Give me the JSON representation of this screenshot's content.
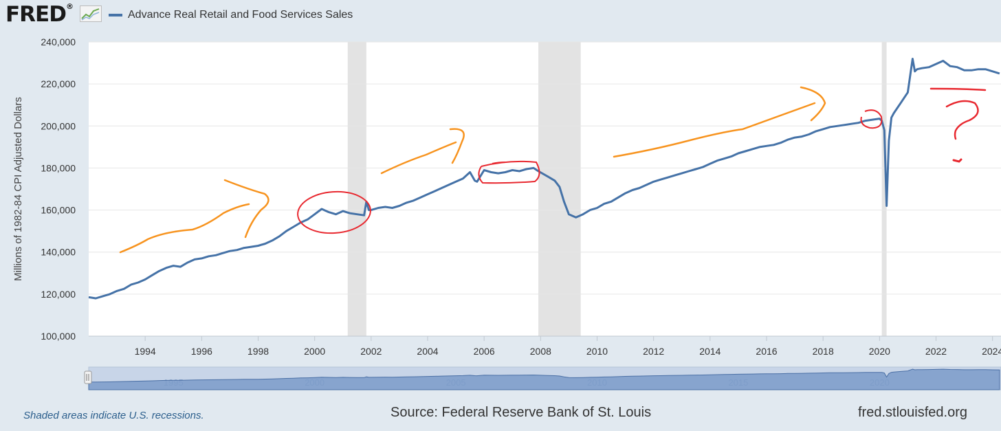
{
  "header": {
    "logo_text": "FRED",
    "logo_mark": "®",
    "series_title": "Advance Real Retail and Food Services Sales"
  },
  "colors": {
    "series": "#4572a7",
    "recession": "#e3e3e3",
    "annotation_orange": "#f7931e",
    "annotation_red": "#e8282f"
  },
  "chart_data": {
    "type": "line",
    "title": "Advance Real Retail and Food Services Sales",
    "ylabel": "Millions of 1982-84 CPI Adjusted Dollars",
    "xlabel": "",
    "ylim": [
      100000,
      240000
    ],
    "xlim": [
      1992.0,
      2024.3
    ],
    "yticks": [
      100000,
      120000,
      140000,
      160000,
      180000,
      200000,
      220000,
      240000
    ],
    "ytick_labels": [
      "100,000",
      "120,000",
      "140,000",
      "160,000",
      "180,000",
      "200,000",
      "220,000",
      "240,000"
    ],
    "xticks": [
      1994,
      1996,
      1998,
      2000,
      2002,
      2004,
      2006,
      2008,
      2010,
      2012,
      2014,
      2016,
      2018,
      2020,
      2022,
      2024
    ],
    "xtick_labels": [
      "1994",
      "1996",
      "1998",
      "2000",
      "2002",
      "2004",
      "2006",
      "2008",
      "2010",
      "2012",
      "2014",
      "2016",
      "2018",
      "2020",
      "2022",
      "2024"
    ],
    "navigator_labels": [
      {
        "year": 1995,
        "label": "1995"
      },
      {
        "year": 2000,
        "label": "2000"
      },
      {
        "year": 2005,
        "label": "2005"
      },
      {
        "year": 2010,
        "label": "2010"
      },
      {
        "year": 2015,
        "label": "2015"
      },
      {
        "year": 2020,
        "label": "2020"
      }
    ],
    "recessions": [
      [
        2001.17,
        2001.83
      ],
      [
        2007.92,
        2009.42
      ],
      [
        2020.08,
        2020.25
      ]
    ],
    "series": [
      {
        "name": "Advance Real Retail and Food Services Sales",
        "x": [
          1992.0,
          1992.25,
          1992.5,
          1992.75,
          1993.0,
          1993.25,
          1993.5,
          1993.75,
          1994.0,
          1994.25,
          1994.5,
          1994.75,
          1995.0,
          1995.25,
          1995.5,
          1995.75,
          1996.0,
          1996.25,
          1996.5,
          1996.75,
          1997.0,
          1997.25,
          1997.5,
          1997.75,
          1998.0,
          1998.25,
          1998.5,
          1998.75,
          1999.0,
          1999.25,
          1999.5,
          1999.75,
          2000.0,
          2000.25,
          2000.5,
          2000.75,
          2001.0,
          2001.25,
          2001.5,
          2001.75,
          2001.83,
          2001.92,
          2002.0,
          2002.25,
          2002.5,
          2002.75,
          2003.0,
          2003.25,
          2003.5,
          2003.75,
          2004.0,
          2004.25,
          2004.5,
          2004.75,
          2005.0,
          2005.25,
          2005.5,
          2005.67,
          2005.75,
          2006.0,
          2006.25,
          2006.5,
          2006.75,
          2007.0,
          2007.25,
          2007.5,
          2007.75,
          2007.92,
          2008.25,
          2008.5,
          2008.67,
          2008.83,
          2009.0,
          2009.25,
          2009.5,
          2009.75,
          2010.0,
          2010.25,
          2010.5,
          2010.75,
          2011.0,
          2011.25,
          2011.5,
          2011.75,
          2012.0,
          2012.25,
          2012.5,
          2012.75,
          2013.0,
          2013.25,
          2013.5,
          2013.75,
          2014.0,
          2014.25,
          2014.5,
          2014.75,
          2015.0,
          2015.25,
          2015.5,
          2015.75,
          2016.0,
          2016.25,
          2016.5,
          2016.75,
          2017.0,
          2017.25,
          2017.5,
          2017.75,
          2018.0,
          2018.25,
          2018.5,
          2018.75,
          2019.0,
          2019.25,
          2019.5,
          2019.75,
          2020.0,
          2020.08,
          2020.17,
          2020.25,
          2020.33,
          2020.42,
          2020.5,
          2020.75,
          2021.0,
          2021.17,
          2021.25,
          2021.33,
          2021.5,
          2021.75,
          2022.0,
          2022.25,
          2022.5,
          2022.75,
          2023.0,
          2023.25,
          2023.5,
          2023.75,
          2024.0,
          2024.25
        ],
        "values": [
          118500,
          118000,
          119000,
          120000,
          121500,
          122500,
          124500,
          125500,
          127000,
          129000,
          131000,
          132500,
          133500,
          133000,
          135000,
          136500,
          137000,
          138000,
          138500,
          139500,
          140500,
          141000,
          142000,
          142500,
          143000,
          144000,
          145500,
          147500,
          150000,
          152000,
          154000,
          155500,
          158000,
          160500,
          159000,
          158000,
          159500,
          158500,
          158000,
          157500,
          164000,
          160000,
          160000,
          161000,
          161500,
          161000,
          162000,
          163500,
          164500,
          166000,
          167500,
          169000,
          170500,
          172000,
          173500,
          175000,
          178000,
          174000,
          173500,
          179000,
          178000,
          177500,
          178000,
          179000,
          178500,
          179500,
          180000,
          178500,
          176000,
          174000,
          171000,
          164000,
          158000,
          156500,
          158000,
          160000,
          161000,
          163000,
          164000,
          166000,
          168000,
          169500,
          170500,
          172000,
          173500,
          174500,
          175500,
          176500,
          177500,
          178500,
          179500,
          180500,
          182000,
          183500,
          184500,
          185500,
          187000,
          188000,
          189000,
          190000,
          190500,
          191000,
          192000,
          193500,
          194500,
          195000,
          196000,
          197500,
          198500,
          199500,
          200000,
          200500,
          201000,
          201500,
          202500,
          203000,
          203500,
          202500,
          198000,
          162000,
          193000,
          204000,
          206000,
          211000,
          216000,
          232000,
          226000,
          227000,
          227500,
          228000,
          229500,
          231000,
          228500,
          228000,
          226500,
          226500,
          227000,
          227000,
          226000,
          225000
        ]
      }
    ]
  },
  "annotations": [
    {
      "type": "arrow",
      "color": "orange",
      "description": "upward arrow 1993-1998"
    },
    {
      "type": "arrow",
      "color": "orange",
      "description": "upward arrow 2002-2005"
    },
    {
      "type": "arrow",
      "color": "orange",
      "description": "upward arrow 2010-2018"
    },
    {
      "type": "circle",
      "color": "red",
      "description": "circle around 1999-2002 plateau"
    },
    {
      "type": "circle",
      "color": "red",
      "description": "circle around 2006-2008 plateau"
    },
    {
      "type": "circle",
      "color": "red",
      "description": "circle around 2019-2020 peak"
    },
    {
      "type": "line",
      "color": "red",
      "description": "flat line over 2022-2024"
    },
    {
      "type": "question-mark",
      "color": "red",
      "description": "question mark near 2022-2023"
    }
  ],
  "footer": {
    "note": "Shaded areas indicate U.S. recessions.",
    "source": "Source: Federal Reserve Bank of St. Louis",
    "site": "fred.stlouisfed.org"
  }
}
